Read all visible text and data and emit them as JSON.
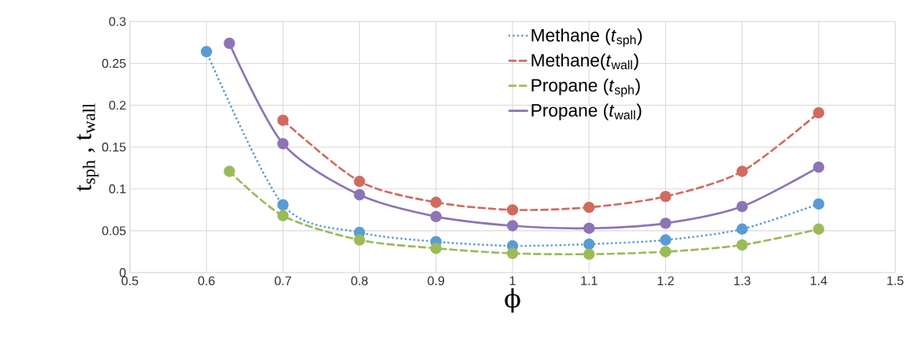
{
  "chart_data": {
    "type": "line",
    "xlabel": "ϕ",
    "ylabel": "t$_{sph}$ , t$_{wall}$",
    "xlim": [
      0.5,
      1.5
    ],
    "xticks": [
      0.5,
      0.6,
      0.7,
      0.8,
      0.9,
      1,
      1.1,
      1.2,
      1.3,
      1.4,
      1.5
    ],
    "ylim": [
      0,
      0.3
    ],
    "yticks": [
      0,
      0.05,
      0.1,
      0.15,
      0.2,
      0.25,
      0.3
    ],
    "grid": true,
    "legend": "top right",
    "marker": "circle",
    "series": [
      {
        "name": "Methane (*t*$_{sph}$)",
        "color": "#5b9bd5",
        "line_style": "dotted",
        "x": [
          0.6,
          0.7,
          0.8,
          0.9,
          1.0,
          1.1,
          1.2,
          1.3,
          1.4
        ],
        "values": [
          0.264,
          0.081,
          0.048,
          0.037,
          0.032,
          0.034,
          0.039,
          0.052,
          0.082
        ]
      },
      {
        "name": "Methane(*t*$_{wall}$)",
        "color": "#d16b5f",
        "line_style": "dashed",
        "x": [
          0.7,
          0.8,
          0.9,
          1.0,
          1.1,
          1.2,
          1.3,
          1.4
        ],
        "values": [
          0.182,
          0.109,
          0.084,
          0.075,
          0.078,
          0.091,
          0.121,
          0.191
        ]
      },
      {
        "name": "Propane (*t*$_{sph}$)",
        "color": "#9bbb59",
        "line_style": "dashed",
        "x": [
          0.63,
          0.7,
          0.8,
          0.9,
          1.0,
          1.1,
          1.2,
          1.3,
          1.4
        ],
        "values": [
          0.121,
          0.068,
          0.039,
          0.029,
          0.023,
          0.022,
          0.025,
          0.033,
          0.052
        ]
      },
      {
        "name": "Propane (*t*$_{wall}$)",
        "color": "#8d74b5",
        "line_style": "solid",
        "x": [
          0.63,
          0.7,
          0.8,
          0.9,
          1.0,
          1.1,
          1.2,
          1.3,
          1.4
        ],
        "values": [
          0.274,
          0.154,
          0.093,
          0.067,
          0.056,
          0.053,
          0.059,
          0.079,
          0.126
        ]
      }
    ]
  }
}
